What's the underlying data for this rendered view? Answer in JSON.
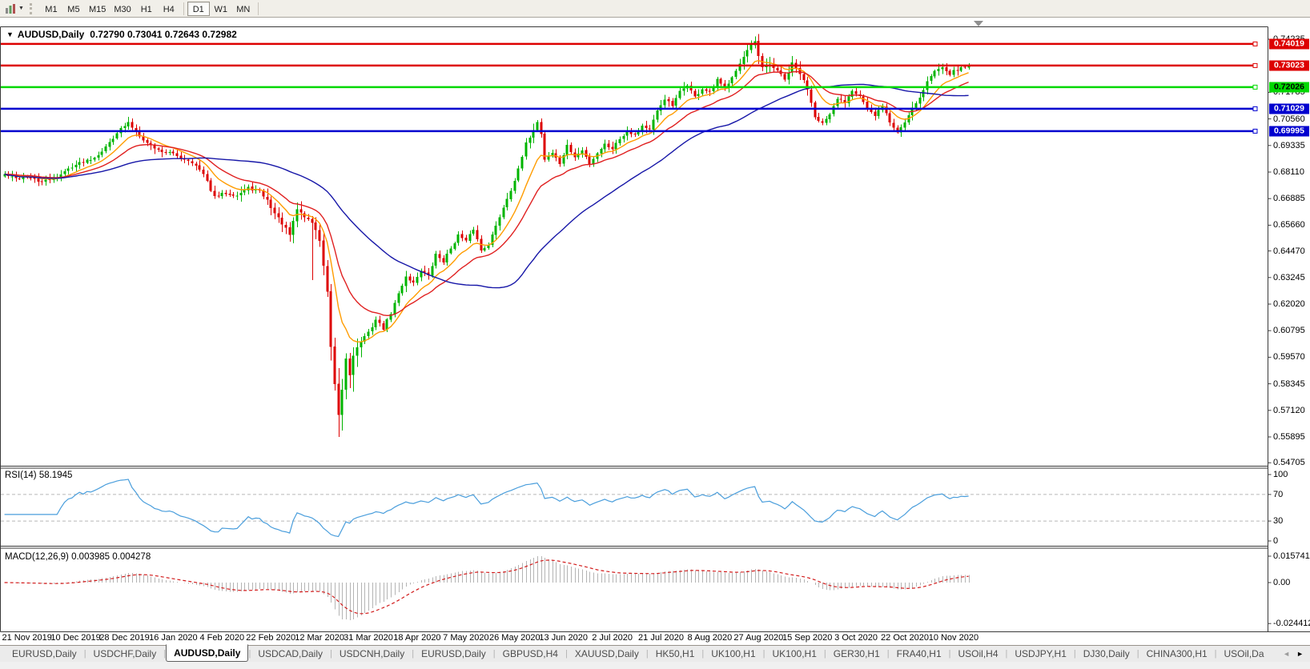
{
  "toolbar": {
    "caret": "▼",
    "timeframes": [
      "M1",
      "M5",
      "M15",
      "M30",
      "H1",
      "H4",
      "D1",
      "W1",
      "MN"
    ],
    "active_timeframe": "D1"
  },
  "chart": {
    "collapse_arrow": "▼",
    "symbol_title": "AUDUSD,Daily",
    "ohlc_text": "0.72790 0.73041 0.72643 0.72982"
  },
  "indicators": {
    "rsi": {
      "label": "RSI(14) 58.1945",
      "period": 14,
      "value": 58.1945,
      "overbought": 70,
      "oversold": 30,
      "axis_ticks": [
        "100",
        "70",
        "30",
        "0"
      ],
      "line_color": "#4a9edc",
      "level_color": "#b6b6b6"
    },
    "macd": {
      "label": "MACD(12,26,9) 0.003985 0.004278",
      "macd_value": 0.003985,
      "signal_value": 0.004278,
      "fast": 12,
      "slow": 26,
      "smoothing": 9,
      "axis_ticks": [
        "0.015741",
        "0.00",
        "-0.024412"
      ],
      "range": [
        -0.024412,
        0.015741
      ],
      "histogram_color": "#b4b4b4",
      "signal_color": "#d21b1b"
    }
  },
  "tabs": {
    "items": [
      "EURUSD,Daily",
      "USDCHF,Daily",
      "AUDUSD,Daily",
      "USDCAD,Daily",
      "USDCNH,Daily",
      "EURUSD,Daily",
      "GBPUSD,H4",
      "XAUUSD,Daily",
      "HK50,H1",
      "UK100,H1",
      "UK100,H1",
      "GER30,H1",
      "FRA40,H1",
      "USOil,H4",
      "USDJPY,H1",
      "DJ30,Daily",
      "CHINA300,H1",
      "USOil,Da"
    ],
    "active_index": 2,
    "scroll_left": "◄",
    "scroll_right": "►"
  },
  "chart_data": {
    "type": "candlestick",
    "symbol": "AUDUSD",
    "period": "Daily",
    "ohlc_current": {
      "open": 0.7279,
      "high": 0.73041,
      "low": 0.72643,
      "close": 0.72982
    },
    "visible_price_range": [
      0.5457,
      0.7479
    ],
    "y_ticks": [
      0.74235,
      0.71785,
      0.7056,
      0.69335,
      0.6811,
      0.66885,
      0.6566,
      0.6447,
      0.63245,
      0.6202,
      0.60795,
      0.5957,
      0.58345,
      0.5712,
      0.55895,
      0.54705
    ],
    "x_labels": [
      "21 Nov 2019",
      "10 Dec 2019",
      "28 Dec 2019",
      "16 Jan 2020",
      "4 Feb 2020",
      "22 Feb 2020",
      "12 Mar 2020",
      "31 Mar 2020",
      "18 Apr 2020",
      "7 May 2020",
      "26 May 2020",
      "13 Jun 2020",
      "2 Jul 2020",
      "21 Jul 2020",
      "8 Aug 2020",
      "27 Aug 2020",
      "15 Sep 2020",
      "3 Oct 2020",
      "22 Oct 2020",
      "10 Nov 2020"
    ],
    "bars": 258,
    "first_label_bar": 6,
    "bars_per_label": 13,
    "bull_color": "#00b400",
    "bear_color": "#dd0000",
    "price_anchors": [
      [
        0,
        0.68
      ],
      [
        3,
        0.678
      ],
      [
        6,
        0.679
      ],
      [
        9,
        0.6768
      ],
      [
        12,
        0.6772
      ],
      [
        15,
        0.68
      ],
      [
        18,
        0.6838
      ],
      [
        21,
        0.686
      ],
      [
        24,
        0.688
      ],
      [
        27,
        0.6925
      ],
      [
        30,
        0.6995
      ],
      [
        33,
        0.7038
      ],
      [
        35,
        0.7
      ],
      [
        38,
        0.6945
      ],
      [
        41,
        0.6912
      ],
      [
        44,
        0.69
      ],
      [
        47,
        0.6878
      ],
      [
        50,
        0.6858
      ],
      [
        53,
        0.68
      ],
      [
        56,
        0.6695
      ],
      [
        59,
        0.6715
      ],
      [
        62,
        0.6705
      ],
      [
        65,
        0.6738
      ],
      [
        68,
        0.6722
      ],
      [
        70,
        0.668
      ],
      [
        72,
        0.662
      ],
      [
        74,
        0.6575
      ],
      [
        76,
        0.652
      ],
      [
        78,
        0.664
      ],
      [
        80,
        0.6605
      ],
      [
        82,
        0.658
      ],
      [
        84,
        0.65
      ],
      [
        85,
        0.638
      ],
      [
        86,
        0.625
      ],
      [
        87,
        0.6
      ],
      [
        88,
        0.582
      ],
      [
        89,
        0.568
      ],
      [
        90,
        0.581
      ],
      [
        91,
        0.595
      ],
      [
        92,
        0.588
      ],
      [
        93,
        0.597
      ],
      [
        95,
        0.603
      ],
      [
        97,
        0.607
      ],
      [
        99,
        0.613
      ],
      [
        101,
        0.609
      ],
      [
        103,
        0.616
      ],
      [
        105,
        0.625
      ],
      [
        107,
        0.633
      ],
      [
        109,
        0.63
      ],
      [
        111,
        0.636
      ],
      [
        113,
        0.633
      ],
      [
        115,
        0.643
      ],
      [
        117,
        0.64
      ],
      [
        119,
        0.646
      ],
      [
        121,
        0.652
      ],
      [
        123,
        0.649
      ],
      [
        125,
        0.655
      ],
      [
        127,
        0.645
      ],
      [
        129,
        0.648
      ],
      [
        131,
        0.656
      ],
      [
        133,
        0.665
      ],
      [
        135,
        0.673
      ],
      [
        137,
        0.682
      ],
      [
        139,
        0.694
      ],
      [
        141,
        0.701
      ],
      [
        142,
        0.704
      ],
      [
        143,
        0.699
      ],
      [
        144,
        0.687
      ],
      [
        146,
        0.69
      ],
      [
        148,
        0.685
      ],
      [
        150,
        0.693
      ],
      [
        152,
        0.688
      ],
      [
        154,
        0.691
      ],
      [
        156,
        0.685
      ],
      [
        158,
        0.69
      ],
      [
        160,
        0.694
      ],
      [
        162,
        0.692
      ],
      [
        164,
        0.6965
      ],
      [
        166,
        0.7
      ],
      [
        168,
        0.6985
      ],
      [
        170,
        0.7025
      ],
      [
        172,
        0.7005
      ],
      [
        174,
        0.709
      ],
      [
        176,
        0.715
      ],
      [
        178,
        0.7115
      ],
      [
        180,
        0.718
      ],
      [
        182,
        0.7215
      ],
      [
        184,
        0.7155
      ],
      [
        186,
        0.7195
      ],
      [
        188,
        0.7175
      ],
      [
        190,
        0.7235
      ],
      [
        192,
        0.7195
      ],
      [
        194,
        0.7255
      ],
      [
        196,
        0.731
      ],
      [
        198,
        0.737
      ],
      [
        200,
        0.741
      ],
      [
        201,
        0.7345
      ],
      [
        202,
        0.729
      ],
      [
        204,
        0.7305
      ],
      [
        206,
        0.728
      ],
      [
        208,
        0.7235
      ],
      [
        210,
        0.731
      ],
      [
        212,
        0.7265
      ],
      [
        214,
        0.7195
      ],
      [
        216,
        0.707
      ],
      [
        218,
        0.7035
      ],
      [
        220,
        0.707
      ],
      [
        222,
        0.715
      ],
      [
        224,
        0.7135
      ],
      [
        226,
        0.719
      ],
      [
        228,
        0.7165
      ],
      [
        230,
        0.7105
      ],
      [
        232,
        0.7065
      ],
      [
        234,
        0.712
      ],
      [
        236,
        0.704
      ],
      [
        238,
        0.6995
      ],
      [
        240,
        0.704
      ],
      [
        242,
        0.711
      ],
      [
        244,
        0.7155
      ],
      [
        246,
        0.723
      ],
      [
        248,
        0.7275
      ],
      [
        250,
        0.73
      ],
      [
        252,
        0.7265
      ],
      [
        254,
        0.7285
      ],
      [
        257,
        0.72982
      ]
    ],
    "special_wicks": [
      {
        "bar": 33,
        "high": 0.7058
      },
      {
        "bar": 82,
        "low": 0.6313
      },
      {
        "bar": 89,
        "low": 0.559
      },
      {
        "bar": 200,
        "high": 0.7413
      }
    ],
    "high_volatility": [
      [
        70,
        82,
        1.6
      ],
      [
        83,
        95,
        2.6
      ],
      [
        196,
        214,
        1.3
      ]
    ],
    "moving_averages": [
      {
        "type": "EMA",
        "period": 10,
        "color": "#ff9c00"
      },
      {
        "type": "EMA",
        "period": 21,
        "color": "#e02020"
      },
      {
        "type": "SMA",
        "period": 50,
        "color": "#1717a8"
      }
    ],
    "levels": [
      {
        "value": 0.74019,
        "color": "#dd0000",
        "text_color": "#ffffff"
      },
      {
        "value": 0.73023,
        "color": "#dd0000",
        "text_color": "#ffffff"
      },
      {
        "value": 0.72026,
        "color": "#00d800",
        "text_color": "#000000"
      },
      {
        "value": 0.71029,
        "color": "#0000cf",
        "text_color": "#ffffff"
      },
      {
        "value": 0.69995,
        "color": "#0000cf",
        "text_color": "#ffffff"
      }
    ]
  }
}
